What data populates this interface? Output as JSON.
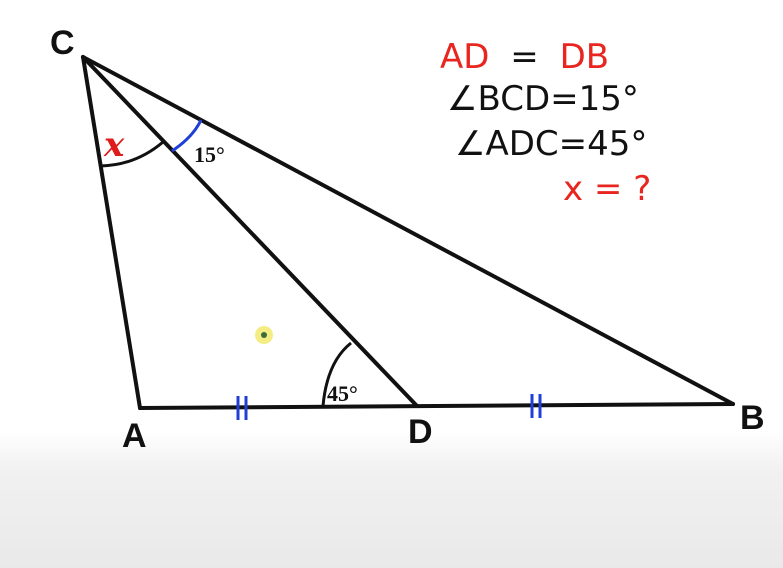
{
  "diagram": {
    "vertices": {
      "C": "C",
      "A": "A",
      "D": "D",
      "B": "B"
    },
    "angle_labels": {
      "x": "x",
      "bcd": "15°",
      "adc": "45°"
    },
    "given": {
      "line1_left": "AD",
      "line1_eq": "=",
      "line1_right": "DB",
      "line2": "∠BCD=15°",
      "line3": "∠ADC=45°",
      "line4": "x = ?"
    },
    "colors": {
      "line": "#111111",
      "red": "#e8261f",
      "tick_blue": "#1f3fd6",
      "cursor": "#f2ea6e"
    }
  }
}
